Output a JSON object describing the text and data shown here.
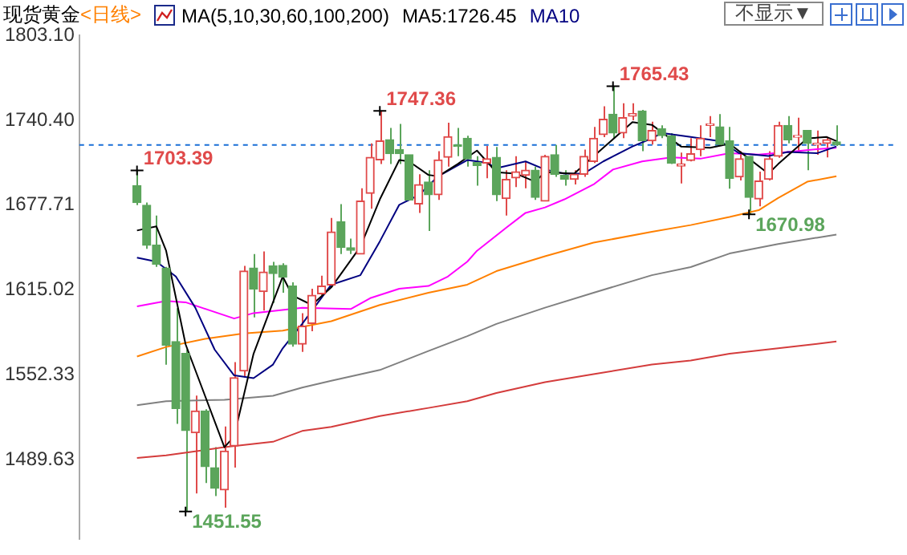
{
  "chart_data": {
    "type": "candlestick",
    "title": "现货黄金",
    "subtitle": "<日线>",
    "annotations": [
      "MA(5,10,30,60,100,200)",
      "MA5:1726.45",
      "不显示▼"
    ],
    "categories": [
      null,
      null,
      null,
      null,
      null,
      null,
      null,
      null,
      null,
      null,
      null,
      null,
      null,
      null,
      null,
      null,
      null,
      null,
      null,
      null,
      null,
      null,
      null,
      null,
      null,
      null,
      null,
      null,
      null,
      null,
      null,
      null,
      null,
      null,
      null,
      null,
      null,
      null,
      null,
      null,
      null,
      null,
      null,
      null,
      null,
      null,
      null,
      null,
      null,
      null,
      null,
      null,
      null,
      null,
      null,
      null,
      null,
      null,
      null,
      null,
      null,
      null,
      null,
      null,
      null,
      null,
      null,
      null,
      null,
      null,
      null,
      null,
      null
    ],
    "ohlc": [
      [
        1692.1,
        1703.39,
        1677.7,
        1679.6
      ],
      [
        1677.7,
        1679.6,
        1645.4,
        1648.1
      ],
      [
        1648.1,
        1670.1,
        1632.1,
        1634.0
      ],
      [
        1631.3,
        1632.1,
        1559.9,
        1574.3
      ],
      [
        1577.0,
        1601.7,
        1516.2,
        1527.6
      ],
      [
        1568.3,
        1571.3,
        1451.55,
        1511.3
      ],
      [
        1509.7,
        1537.1,
        1464.9,
        1525.7
      ],
      [
        1525.7,
        1527.0,
        1472.5,
        1484.7
      ],
      [
        1483.9,
        1499.1,
        1463.0,
        1468.7
      ],
      [
        1467.5,
        1514.3,
        1454.3,
        1496.1
      ],
      [
        1499.9,
        1561.8,
        1483.9,
        1550.4
      ],
      [
        1555.3,
        1632.9,
        1550.4,
        1629.1
      ],
      [
        1631.3,
        1641.6,
        1594.9,
        1615.8
      ],
      [
        1613.9,
        1643.5,
        1599.8,
        1628.3
      ],
      [
        1632.9,
        1635.9,
        1605.5,
        1627.2
      ],
      [
        1633.2,
        1634.8,
        1613.1,
        1624.5
      ],
      [
        1618.0,
        1620.7,
        1573.2,
        1575.1
      ],
      [
        1575.1,
        1597.9,
        1569.4,
        1588.4
      ],
      [
        1590.3,
        1616.0,
        1584.6,
        1611.2
      ],
      [
        1612.3,
        1625.6,
        1611.2,
        1618.0
      ],
      [
        1618.8,
        1668.2,
        1616.9,
        1657.9
      ],
      [
        1665.5,
        1678.5,
        1641.6,
        1646.5
      ],
      [
        1646.2,
        1653.0,
        1641.6,
        1644.3
      ],
      [
        1641.6,
        1690.2,
        1641.6,
        1680.7
      ],
      [
        1686.4,
        1723.3,
        1675.0,
        1713.0
      ],
      [
        1711.1,
        1747.36,
        1708.1,
        1725.2
      ],
      [
        1726.0,
        1734.7,
        1708.1,
        1715.7
      ],
      [
        1718.7,
        1737.7,
        1708.1,
        1715.7
      ],
      [
        1714.9,
        1714.9,
        1681.5,
        1681.5
      ],
      [
        1678.5,
        1700.5,
        1672.0,
        1692.9
      ],
      [
        1694.8,
        1703.5,
        1658.7,
        1685.3
      ],
      [
        1685.3,
        1717.6,
        1681.5,
        1711.1
      ],
      [
        1713.0,
        1738.5,
        1706.2,
        1728.2
      ],
      [
        1722.0,
        1734.7,
        1713.8,
        1721.0
      ],
      [
        1727.1,
        1729.0,
        1706.2,
        1711.9
      ],
      [
        1709.2,
        1713.8,
        1692.1,
        1707.0
      ],
      [
        1708.8,
        1721.4,
        1697.5,
        1711.9
      ],
      [
        1713.0,
        1720.6,
        1680.7,
        1685.3
      ],
      [
        1682.6,
        1703.5,
        1670.1,
        1696.7
      ],
      [
        1697.8,
        1713.8,
        1691.0,
        1702.4
      ],
      [
        1699.7,
        1710.0,
        1690.2,
        1703.5
      ],
      [
        1703.5,
        1706.2,
        1681.5,
        1683.4
      ],
      [
        1680.7,
        1714.9,
        1680.7,
        1713.8
      ],
      [
        1714.9,
        1722.2,
        1698.6,
        1700.5
      ],
      [
        1699.7,
        1703.5,
        1692.1,
        1696.7
      ],
      [
        1696.7,
        1703.5,
        1692.9,
        1700.5
      ],
      [
        1700.5,
        1718.7,
        1698.6,
        1713.8
      ],
      [
        1710.0,
        1735.5,
        1708.8,
        1727.1
      ],
      [
        1729.8,
        1750.7,
        1727.9,
        1741.2
      ],
      [
        1744.9,
        1765.43,
        1727.1,
        1730.9
      ],
      [
        1730.9,
        1752.9,
        1727.1,
        1742.3
      ],
      [
        1743.4,
        1752.9,
        1740.4,
        1745.3
      ],
      [
        1747.2,
        1748.0,
        1717.6,
        1725.2
      ],
      [
        1725.2,
        1739.3,
        1722.5,
        1732.8
      ],
      [
        1734.0,
        1736.6,
        1727.1,
        1729.0
      ],
      [
        1729.0,
        1730.9,
        1708.1,
        1708.8
      ],
      [
        1706.6,
        1716.5,
        1693.7,
        1708.1
      ],
      [
        1710.7,
        1727.1,
        1710.0,
        1715.7
      ],
      [
        1718.7,
        1736.6,
        1713.8,
        1727.1
      ],
      [
        1736.6,
        1743.4,
        1727.9,
        1737.7
      ],
      [
        1735.5,
        1745.0,
        1721.4,
        1722.5
      ],
      [
        1725.2,
        1735.5,
        1689.9,
        1697.5
      ],
      [
        1698.6,
        1717.6,
        1696.0,
        1711.9
      ],
      [
        1713.8,
        1713.8,
        1670.98,
        1683.4
      ],
      [
        1682.3,
        1702.4,
        1676.9,
        1695.6
      ],
      [
        1696.7,
        1717.6,
        1696.0,
        1711.9
      ],
      [
        1713.8,
        1739.3,
        1712.7,
        1736.6
      ],
      [
        1736.6,
        1743.4,
        1723.3,
        1726.0
      ],
      [
        1727.9,
        1742.3,
        1716.5,
        1729.0
      ],
      [
        1732.8,
        1732.8,
        1703.5,
        1723.3
      ],
      [
        1722.2,
        1732.8,
        1714.9,
        1723.3
      ],
      [
        1723.3,
        1728.2,
        1713.0,
        1726.0
      ],
      [
        1724.4,
        1736.6,
        1721.4,
        1722.2
      ]
    ],
    "value_labels": [
      "1703.39",
      null,
      null,
      null,
      null,
      "1451.55",
      null,
      null,
      null,
      null,
      null,
      null,
      null,
      null,
      null,
      null,
      null,
      null,
      null,
      null,
      null,
      null,
      null,
      null,
      null,
      "1747.36",
      null,
      null,
      null,
      null,
      null,
      null,
      null,
      null,
      null,
      null,
      null,
      null,
      null,
      null,
      null,
      null,
      null,
      null,
      null,
      null,
      null,
      null,
      null,
      "1765.43",
      null,
      null,
      null,
      null,
      null,
      null,
      null,
      null,
      null,
      null,
      null,
      null,
      null,
      "1670.98",
      null,
      null,
      null,
      null,
      null,
      null,
      null,
      null,
      null
    ],
    "colors": [
      "#5ba55b",
      "#5ba55b",
      "#5ba55b",
      "#5ba55b",
      "#5ba55b",
      "#5ba55b",
      "#e04a4a",
      "#5ba55b",
      "#5ba55b",
      "#e04a4a",
      "#e04a4a",
      "#e04a4a",
      "#5ba55b",
      "#e04a4a",
      "#5ba55b",
      "#5ba55b",
      "#5ba55b",
      "#e04a4a",
      "#e04a4a",
      "#e04a4a",
      "#e04a4a",
      "#5ba55b",
      "#5ba55b",
      "#e04a4a",
      "#e04a4a",
      "#e04a4a",
      "#5ba55b",
      "#5ba55b",
      "#5ba55b",
      "#e04a4a",
      "#5ba55b",
      "#e04a4a",
      "#e04a4a",
      "#5ba55b",
      "#5ba55b",
      "#5ba55b",
      "#e04a4a",
      "#5ba55b",
      "#e04a4a",
      "#e04a4a",
      "#e04a4a",
      "#5ba55b",
      "#e04a4a",
      "#5ba55b",
      "#5ba55b",
      "#e04a4a",
      "#e04a4a",
      "#e04a4a",
      "#e04a4a",
      "#5ba55b",
      "#e04a4a",
      "#e04a4a",
      "#5ba55b",
      "#e04a4a",
      "#5ba55b",
      "#5ba55b",
      "#e04a4a",
      "#e04a4a",
      "#e04a4a",
      "#e04a4a",
      "#5ba55b",
      "#5ba55b",
      "#e04a4a",
      "#5ba55b",
      "#e04a4a",
      "#e04a4a",
      "#e04a4a",
      "#5ba55b",
      "#e04a4a",
      "#5ba55b",
      "#e04a4a",
      "#e04a4a",
      "#5ba55b"
    ],
    "series": [
      {
        "type": "line",
        "color": "#000000",
        "values": [
          1659,
          null,
          1662,
          1644,
          null,
          1575,
          null,
          null,
          null,
          1499,
          1507,
          null,
          1568,
          null,
          1606,
          1625,
          1611,
          null,
          1604,
          null,
          1617,
          null,
          null,
          1647,
          null,
          1682,
          null,
          1711,
          1710,
          null,
          1700,
          1699,
          null,
          1708,
          null,
          1718,
          null,
          1702,
          null,
          1701,
          null,
          1695,
          1702,
          null,
          null,
          1701,
          null,
          null,
          1720,
          null,
          null,
          1739,
          null,
          1737,
          null,
          null,
          1721,
          null,
          null,
          1720,
          null,
          1723,
          null,
          1712,
          null,
          1701,
          1708,
          null,
          null,
          1727,
          null,
          1728,
          1725
        ]
      },
      {
        "type": "line",
        "name": "MA10",
        "color": "#000080",
        "values": [
          1639,
          null,
          1636,
          null,
          1625,
          null,
          1602,
          null,
          1571,
          null,
          1552,
          null,
          1550,
          null,
          1560,
          1572,
          null,
          1590,
          null,
          null,
          1619,
          null,
          null,
          1626,
          null,
          1651,
          null,
          1678,
          null,
          1685,
          null,
          1699,
          null,
          null,
          1711,
          null,
          1709,
          1705,
          null,
          null,
          1710,
          null,
          1704,
          null,
          1701,
          null,
          1701,
          null,
          1710,
          null,
          null,
          1721,
          null,
          1727,
          1731,
          null,
          null,
          1728,
          null,
          null,
          1725,
          null,
          1716,
          null,
          null,
          1714,
          null,
          1717,
          null,
          null,
          1716,
          null,
          1721
        ]
      },
      {
        "type": "line",
        "color": "#ff00ff",
        "values": [
          1603,
          null,
          null,
          1607,
          null,
          1606,
          null,
          null,
          null,
          null,
          1594,
          null,
          1598,
          null,
          null,
          null,
          null,
          1602,
          null,
          null,
          null,
          null,
          1601,
          null,
          1609,
          null,
          null,
          1616,
          null,
          null,
          1618,
          null,
          1625,
          null,
          1636,
          1644,
          null,
          null,
          1661,
          null,
          1672,
          null,
          1676,
          null,
          1682,
          null,
          null,
          1693,
          null,
          1704,
          null,
          null,
          1710,
          null,
          null,
          1713,
          null,
          null,
          1712,
          null,
          null,
          1716,
          null,
          null,
          1715,
          null,
          null,
          1717,
          null,
          null,
          1719,
          null,
          1720
        ]
      },
      {
        "type": "line",
        "color": "#ff8000",
        "values": [
          1566,
          null,
          null,
          1573,
          null,
          null,
          null,
          1579,
          null,
          null,
          null,
          1583,
          null,
          null,
          null,
          1585,
          null,
          null,
          null,
          null,
          1592,
          null,
          null,
          null,
          null,
          1604,
          null,
          null,
          null,
          null,
          1613,
          null,
          null,
          null,
          1619,
          null,
          null,
          1629,
          null,
          null,
          null,
          null,
          1640,
          null,
          null,
          null,
          null,
          1650,
          null,
          null,
          null,
          null,
          null,
          1658,
          null,
          null,
          null,
          1663,
          null,
          null,
          null,
          1669,
          null,
          null,
          1674,
          null,
          1683,
          null,
          null,
          1695,
          null,
          null,
          1699
        ]
      },
      {
        "type": "line",
        "color": "#808080",
        "values": [
          1530,
          null,
          null,
          1533,
          null,
          null,
          null,
          null,
          null,
          1534,
          null,
          null,
          null,
          null,
          1537,
          null,
          null,
          1543,
          null,
          null,
          1548,
          null,
          null,
          null,
          null,
          1556,
          null,
          null,
          null,
          null,
          1570,
          null,
          null,
          null,
          1581,
          null,
          null,
          1590,
          null,
          null,
          null,
          null,
          1602,
          null,
          null,
          null,
          null,
          1613,
          null,
          null,
          null,
          null,
          null,
          1626,
          null,
          null,
          null,
          1632,
          null,
          null,
          null,
          1642,
          null,
          null,
          null,
          null,
          1649,
          null,
          null,
          null,
          null,
          null,
          1656
        ]
      },
      {
        "type": "line",
        "color": "#d43c3c",
        "values": [
          1491,
          null,
          null,
          1493,
          null,
          null,
          null,
          null,
          null,
          1499,
          null,
          null,
          null,
          null,
          1503,
          null,
          null,
          1511,
          null,
          null,
          1514,
          null,
          null,
          null,
          null,
          1522,
          null,
          null,
          null,
          null,
          1528,
          null,
          null,
          null,
          1533,
          null,
          null,
          1539,
          null,
          null,
          null,
          null,
          1547,
          null,
          null,
          null,
          null,
          1553,
          null,
          null,
          null,
          null,
          null,
          1560,
          null,
          null,
          null,
          1563,
          null,
          null,
          null,
          1568,
          null,
          null,
          null,
          null,
          1572,
          null,
          null,
          null,
          null,
          null,
          1577
        ]
      }
    ],
    "ylim": [
      1431.5,
      1803.1
    ],
    "yticks": [
      {
        "value": 1803.1,
        "label": "1803.10"
      },
      {
        "value": 1740.4,
        "label": "1740.40"
      },
      1677.71,
      1615.02,
      1552.33,
      1489.63
    ],
    "ref_lines": [
      {
        "axis": "y",
        "value": 1722.2,
        "color": "#1a6fd6",
        "line_style": "dashed"
      }
    ],
    "tick_labels": "y",
    "legend": false
  }
}
